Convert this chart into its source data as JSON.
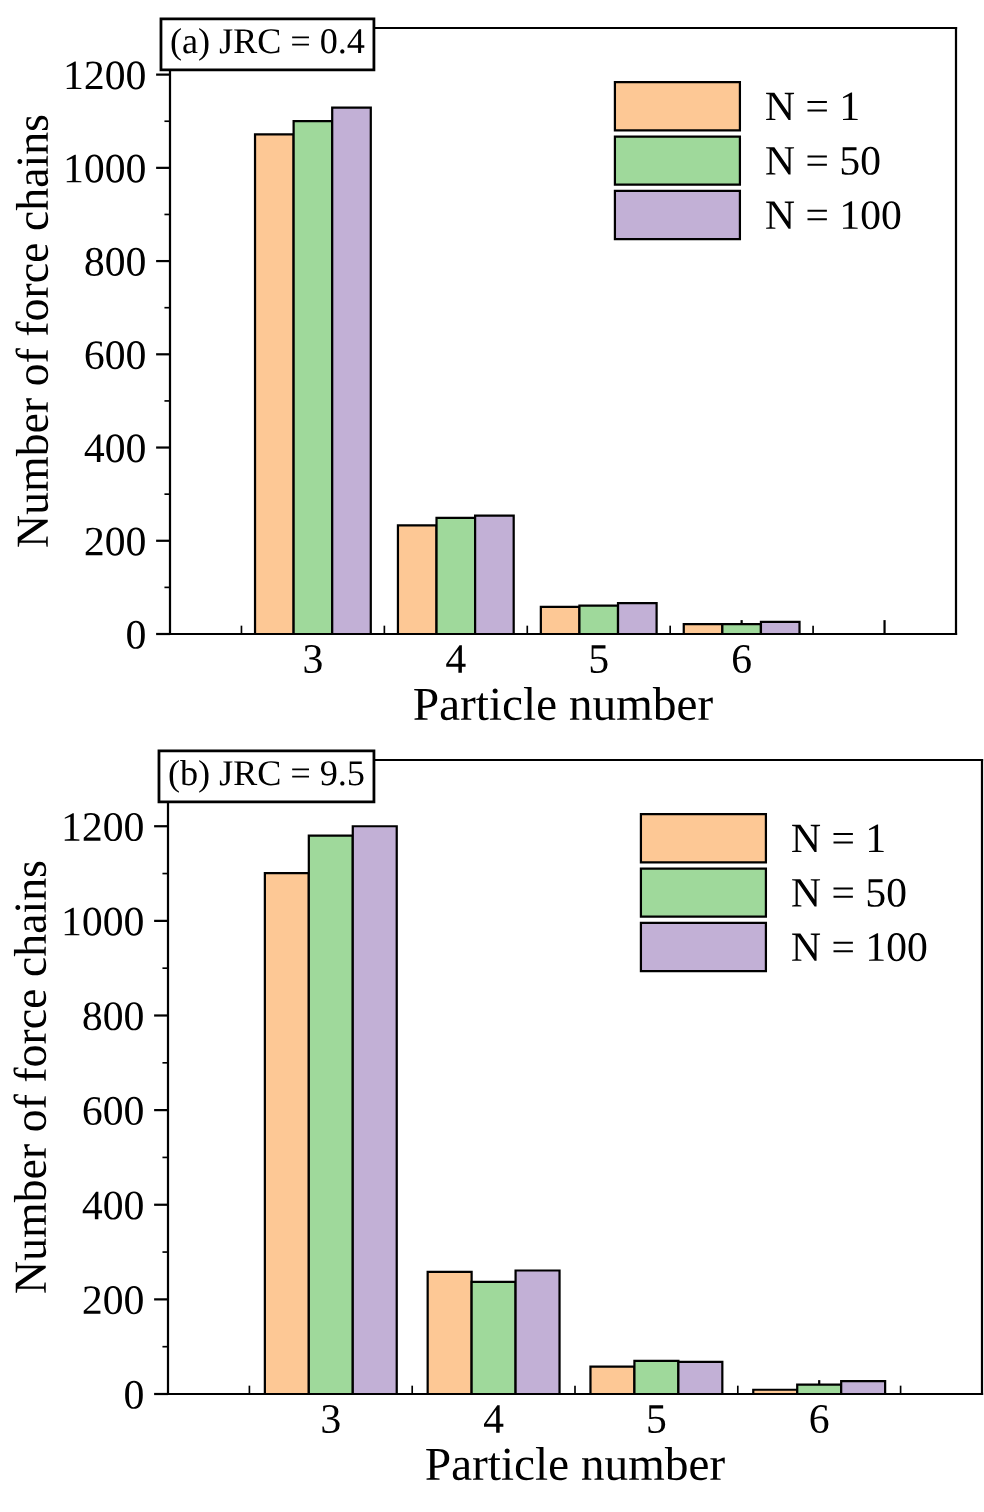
{
  "chart_data": [
    {
      "type": "bar",
      "title": "(a) JRC = 0.4",
      "xlabel": "Particle number",
      "ylabel": "Number of force chains",
      "categories": [
        "3",
        "4",
        "5",
        "6",
        null
      ],
      "ylim": [
        0,
        1300
      ],
      "yticks": [
        0,
        200,
        400,
        600,
        800,
        1000,
        1200
      ],
      "legend": "top right",
      "series": [
        {
          "name": "N = 1",
          "color": "#fdc895",
          "values": [
            1072,
            233,
            58,
            21,
            null
          ]
        },
        {
          "name": "N = 50",
          "color": "#9fd99b",
          "values": [
            1100,
            249,
            61,
            21,
            null
          ]
        },
        {
          "name": "N = 100",
          "color": "#c2b0d6",
          "values": [
            1129,
            254,
            66,
            26,
            null
          ]
        }
      ]
    },
    {
      "type": "bar",
      "title": "(b) JRC = 9.5",
      "xlabel": "Particle number",
      "ylabel": "Number of force chains",
      "categories": [
        "3",
        "4",
        "5",
        "6"
      ],
      "ylim": [
        0,
        1340
      ],
      "yticks": [
        0,
        200,
        400,
        600,
        800,
        1000,
        1200
      ],
      "legend": "top right",
      "series": [
        {
          "name": "N = 1",
          "color": "#fdc895",
          "values": [
            1101,
            258,
            58,
            9
          ]
        },
        {
          "name": "N = 50",
          "color": "#9fd99b",
          "values": [
            1180,
            237,
            70,
            20
          ]
        },
        {
          "name": "N = 100",
          "color": "#c2b0d6",
          "values": [
            1200,
            261,
            68,
            27
          ]
        }
      ]
    }
  ]
}
